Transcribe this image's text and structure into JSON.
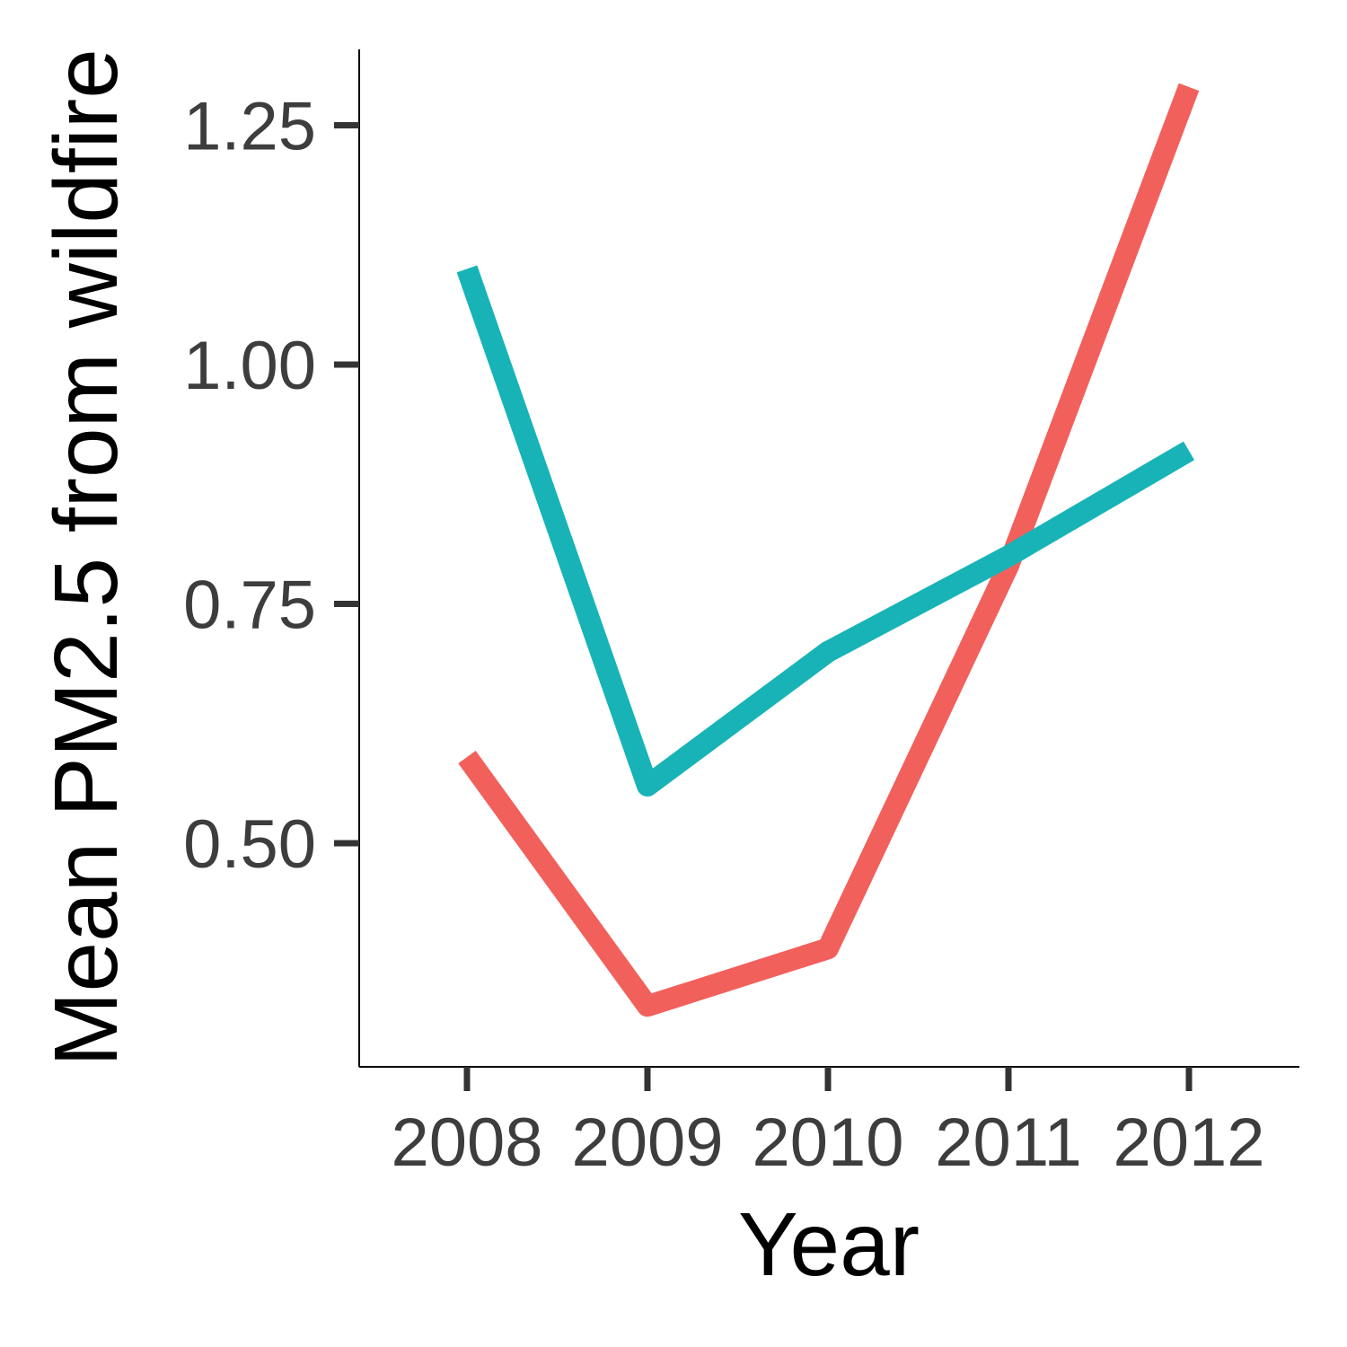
{
  "chart_data": {
    "type": "line",
    "title": "",
    "xlabel": "Year",
    "ylabel": "Mean PM2.5 from wildfire",
    "x": [
      "2008",
      "2009",
      "2010",
      "2011",
      "2012"
    ],
    "series": [
      {
        "values": [
          0.59,
          0.33,
          0.39,
          0.79,
          1.29
        ],
        "color": "#f2605c"
      },
      {
        "values": [
          1.1,
          0.56,
          0.7,
          0.8,
          0.91
        ],
        "color": "#17b3b7"
      }
    ],
    "yticks": [
      "0.50",
      "0.75",
      "1.00",
      "1.25"
    ],
    "ytick_values": [
      0.5,
      0.75,
      1.0,
      1.25
    ],
    "ylim": [
      0.28,
      1.33
    ],
    "grid": false,
    "legend": "none"
  }
}
